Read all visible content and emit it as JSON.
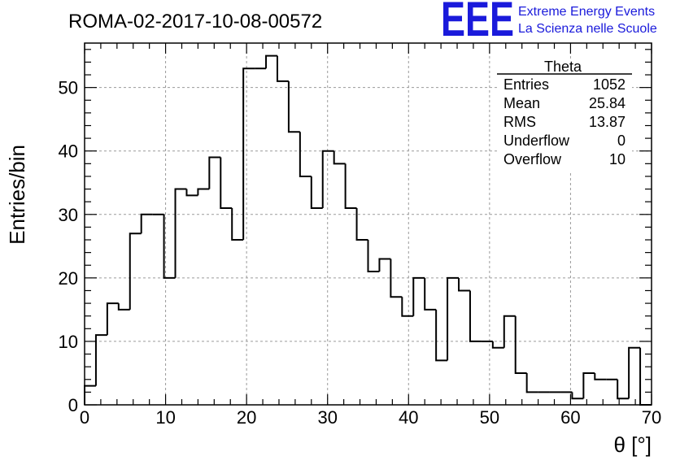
{
  "title": "ROMA-02-2017-10-08-00572",
  "logo": {
    "mark": "EEE",
    "line1": "Extreme Energy Events",
    "line2": "La Scienza nelle Scuole",
    "color": "#1a1adb"
  },
  "stats": {
    "name": "Theta",
    "rows": [
      {
        "label": "Entries",
        "value": "1052"
      },
      {
        "label": "Mean",
        "value": "25.84"
      },
      {
        "label": "RMS",
        "value": "13.87"
      },
      {
        "label": "Underflow",
        "value": "0"
      },
      {
        "label": "Overflow",
        "value": "10"
      }
    ]
  },
  "chart_data": {
    "type": "bar",
    "style": "step-histogram",
    "xlabel": "θ [°]",
    "ylabel": "Entries/bin",
    "xlim": [
      0,
      70
    ],
    "ylim": [
      0,
      57
    ],
    "bin_width": 1.4,
    "x_ticks": [
      0,
      10,
      20,
      30,
      40,
      50,
      60,
      70
    ],
    "y_ticks": [
      0,
      10,
      20,
      30,
      40,
      50
    ],
    "grid": true,
    "legend": "none",
    "values": [
      3,
      11,
      16,
      15,
      27,
      30,
      30,
      20,
      34,
      33,
      34,
      39,
      31,
      26,
      53,
      53,
      55,
      51,
      43,
      36,
      31,
      40,
      38,
      31,
      26,
      21,
      23,
      17,
      14,
      20,
      15,
      7,
      20,
      18,
      10,
      10,
      9,
      14,
      5,
      2,
      2,
      2,
      2,
      1,
      5,
      4,
      4,
      1,
      9,
      0
    ]
  }
}
